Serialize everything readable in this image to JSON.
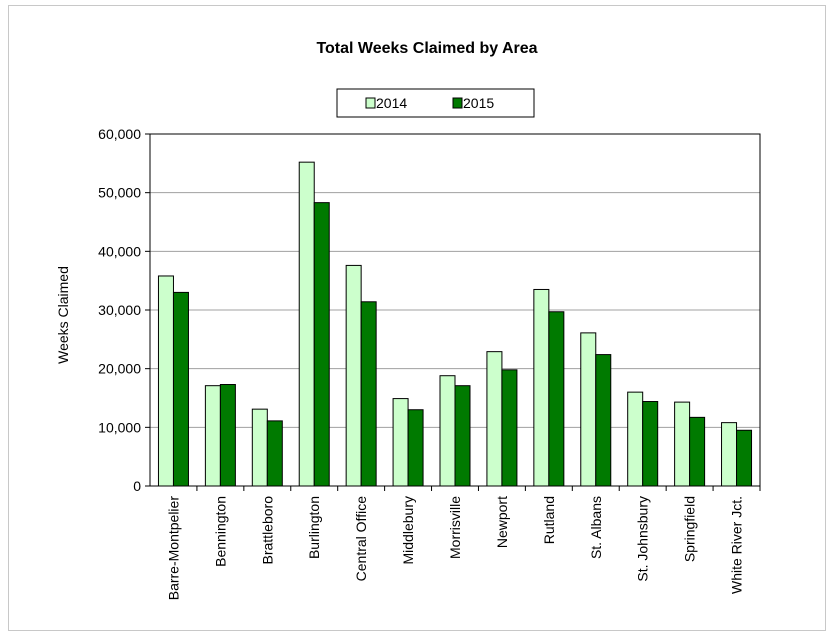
{
  "chart_data": {
    "type": "bar",
    "title": "Total Weeks Claimed by Area",
    "xlabel": "",
    "ylabel": "Weeks Claimed",
    "ylim": [
      0,
      60000
    ],
    "yticks": [
      "0",
      "10,000",
      "20,000",
      "30,000",
      "40,000",
      "50,000",
      "60,000"
    ],
    "grid": true,
    "legend_position": "top-center",
    "categories": [
      "Barre-Montpelier",
      "Bennington",
      "Brattleboro",
      "Burlington",
      "Central Office",
      "Middlebury",
      "Morrisville",
      "Newport",
      "Rutland",
      "St. Albans",
      "St. Johnsbury",
      "Springfield",
      "White River Jct."
    ],
    "series": [
      {
        "name": "2014",
        "color": "#ccffcc",
        "values": [
          35800,
          17100,
          13100,
          55200,
          37600,
          14900,
          18800,
          22900,
          33500,
          26100,
          16000,
          14300,
          10800
        ]
      },
      {
        "name": "2015",
        "color": "#007a00",
        "values": [
          33000,
          17300,
          11100,
          48300,
          31400,
          13000,
          17100,
          19800,
          29700,
          22400,
          14400,
          11700,
          9500
        ]
      }
    ]
  }
}
